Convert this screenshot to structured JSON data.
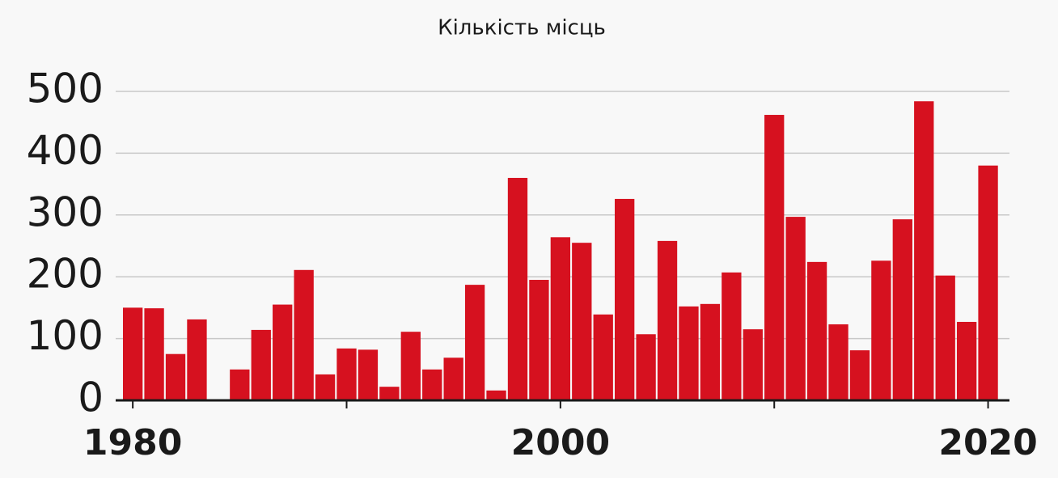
{
  "chart_data": {
    "type": "bar",
    "title": "Кількість місць",
    "x": [
      1980,
      1981,
      1982,
      1983,
      1984,
      1985,
      1986,
      1987,
      1988,
      1989,
      1990,
      1991,
      1992,
      1993,
      1994,
      1995,
      1996,
      1997,
      1998,
      1999,
      2000,
      2001,
      2002,
      2003,
      2004,
      2005,
      2006,
      2007,
      2008,
      2009,
      2010,
      2011,
      2012,
      2013,
      2014,
      2015,
      2016,
      2017,
      2018,
      2019,
      2020
    ],
    "values": [
      150,
      149,
      75,
      131,
      0,
      50,
      114,
      155,
      211,
      42,
      84,
      82,
      22,
      111,
      50,
      69,
      187,
      16,
      360,
      195,
      264,
      255,
      139,
      326,
      107,
      258,
      152,
      156,
      207,
      115,
      462,
      297,
      224,
      123,
      81,
      226,
      293,
      484,
      202,
      127,
      380
    ],
    "color": "#d6111f",
    "xlim": [
      1979.2,
      2021
    ],
    "xticks": [
      1980,
      2000,
      2020
    ],
    "minor_xticks": [
      1990,
      2010
    ],
    "ylim": [
      0,
      500
    ],
    "yticks": [
      0,
      100,
      200,
      300,
      400,
      500
    ],
    "grid": true
  }
}
